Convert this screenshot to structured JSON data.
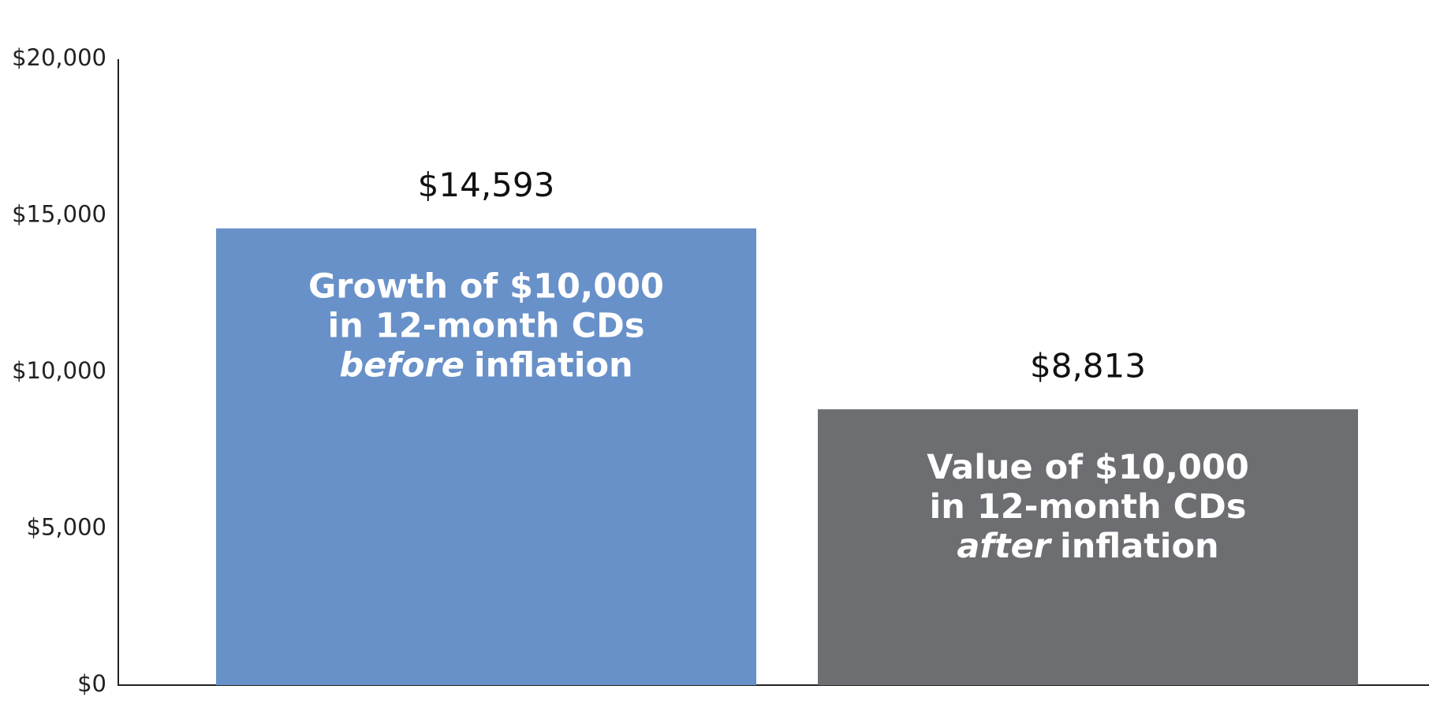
{
  "chart_data": {
    "type": "bar",
    "categories": [
      {
        "lines": [
          "Growth of $10,000",
          "in 12-month CDs"
        ],
        "emphasis": "before",
        "rest": "inflation"
      },
      {
        "lines": [
          "Value of $10,000",
          "in 12-month CDs"
        ],
        "emphasis": "after",
        "rest": "inflation"
      }
    ],
    "values": [
      14593,
      8813
    ],
    "value_labels": [
      "$14,593",
      "$8,813"
    ],
    "colors": [
      "#6891c9",
      "#6d6e71"
    ],
    "ylim": [
      0,
      20000
    ],
    "yticks": [
      {
        "value": 0,
        "label": "$0"
      },
      {
        "value": 5000,
        "label": "$5,000"
      },
      {
        "value": 10000,
        "label": "$10,000"
      },
      {
        "value": 15000,
        "label": "$15,000"
      },
      {
        "value": 20000,
        "label": "$20,000"
      }
    ],
    "grid": false
  }
}
